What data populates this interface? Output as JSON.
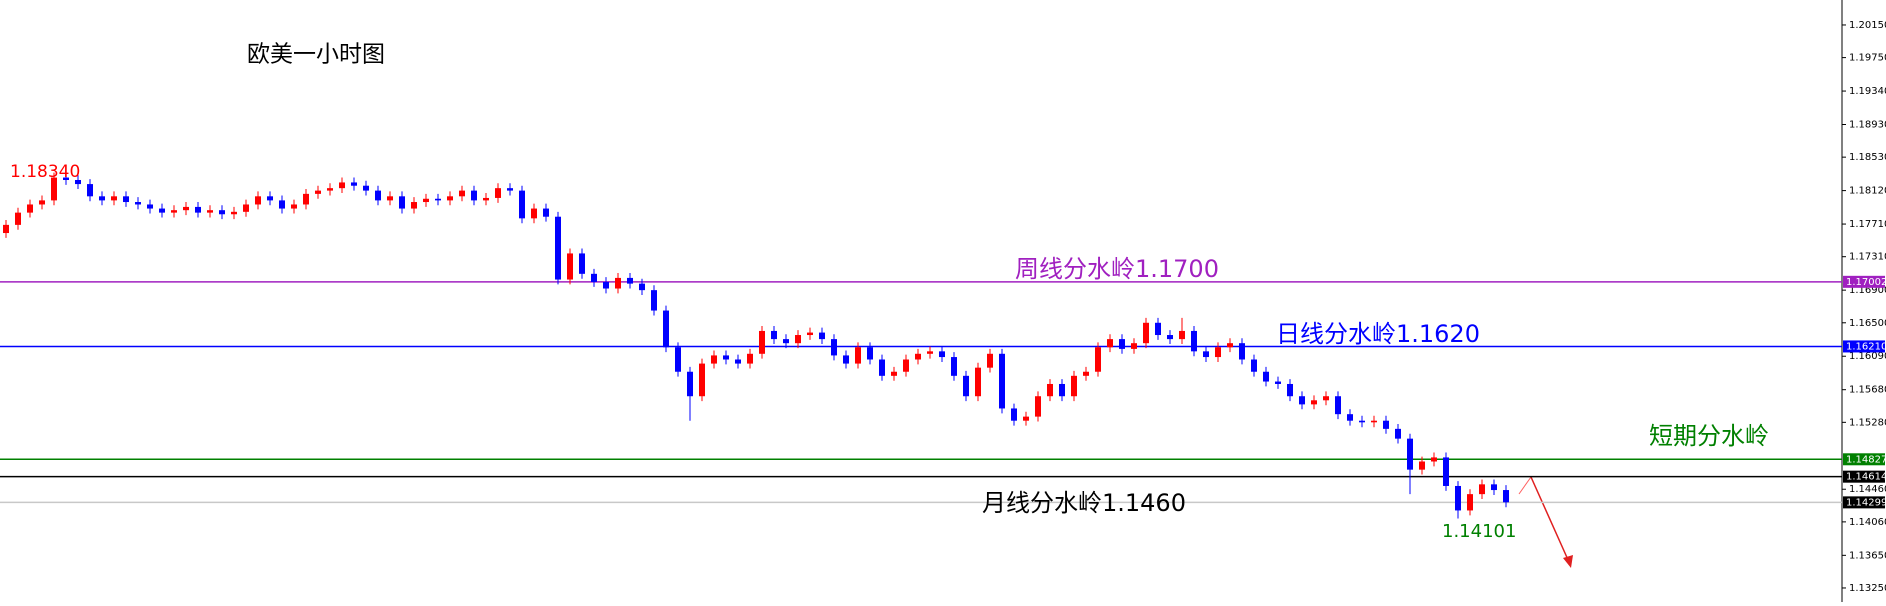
{
  "chart_data": {
    "type": "candlestick",
    "title": "欧美一小时图",
    "ylim": [
      1.13078,
      1.20456
    ],
    "yticks": [
      {
        "value": 1.2015,
        "label": "1.20150"
      },
      {
        "value": 1.1975,
        "label": "1.19750"
      },
      {
        "value": 1.1934,
        "label": "1.19340"
      },
      {
        "value": 1.1893,
        "label": "1.18930"
      },
      {
        "value": 1.1853,
        "label": "1.18530"
      },
      {
        "value": 1.1812,
        "label": "1.18120"
      },
      {
        "value": 1.1771,
        "label": "1.17710"
      },
      {
        "value": 1.1731,
        "label": "1.17310"
      },
      {
        "value": 1.169,
        "label": "1.16900"
      },
      {
        "value": 1.165,
        "label": "1.16500"
      },
      {
        "value": 1.1609,
        "label": "1.16090"
      },
      {
        "value": 1.1568,
        "label": "1.15680"
      },
      {
        "value": 1.1528,
        "label": "1.15280"
      },
      {
        "value": 1.1446,
        "label": "1.14460"
      },
      {
        "value": 1.1406,
        "label": "1.14060"
      },
      {
        "value": 1.1365,
        "label": "1.13650"
      },
      {
        "value": 1.1325,
        "label": "1.13250"
      }
    ],
    "up_color": "#ff0000",
    "down_color": "#0000ff",
    "open": [
      1.176,
      1.177,
      1.1785,
      1.1795,
      1.18,
      1.1828,
      1.1825,
      1.182,
      1.1805,
      1.18,
      1.1805,
      1.1798,
      1.1795,
      1.179,
      1.1785,
      1.1788,
      1.1792,
      1.1785,
      1.1788,
      1.1783,
      1.1786,
      1.1795,
      1.1805,
      1.18,
      1.179,
      1.1795,
      1.1808,
      1.1812,
      1.1815,
      1.1822,
      1.1818,
      1.1812,
      1.18,
      1.1805,
      1.179,
      1.1798,
      1.1802,
      1.18,
      1.1805,
      1.1812,
      1.18,
      1.1803,
      1.1815,
      1.1812,
      1.1778,
      1.179,
      1.178,
      1.1703,
      1.1735,
      1.171,
      1.17,
      1.1692,
      1.1705,
      1.1698,
      1.169,
      1.1665,
      1.162,
      1.159,
      1.156,
      1.16,
      1.161,
      1.1605,
      1.16,
      1.1612,
      1.164,
      1.163,
      1.1625,
      1.1635,
      1.1638,
      1.163,
      1.161,
      1.16,
      1.162,
      1.1605,
      1.1585,
      1.159,
      1.1605,
      1.1612,
      1.1615,
      1.1608,
      1.1585,
      1.156,
      1.1595,
      1.1612,
      1.1545,
      1.153,
      1.1535,
      1.156,
      1.1575,
      1.156,
      1.1585,
      1.159,
      1.162,
      1.163,
      1.1618,
      1.1625,
      1.165,
      1.1635,
      1.163,
      1.164,
      1.1615,
      1.1608,
      1.162,
      1.1625,
      1.1605,
      1.159,
      1.1578,
      1.1575,
      1.156,
      1.155,
      1.1555,
      1.156,
      1.1538,
      1.153,
      1.1528,
      1.153,
      1.152,
      1.1508,
      1.147,
      1.148,
      1.1485,
      1.145,
      1.142,
      1.144,
      1.1452,
      1.1445
    ],
    "high": [
      1.1776,
      1.1791,
      1.1801,
      1.1806,
      1.1834,
      1.1834,
      1.1831,
      1.1826,
      1.1811,
      1.1811,
      1.1811,
      1.1804,
      1.1801,
      1.1796,
      1.1794,
      1.1798,
      1.1798,
      1.1794,
      1.1794,
      1.1792,
      1.1801,
      1.1811,
      1.1811,
      1.1806,
      1.1801,
      1.1814,
      1.1818,
      1.1821,
      1.1828,
      1.1828,
      1.1824,
      1.1818,
      1.1811,
      1.1811,
      1.1804,
      1.1808,
      1.1808,
      1.1811,
      1.1818,
      1.1818,
      1.1809,
      1.1821,
      1.1821,
      1.1818,
      1.1796,
      1.1796,
      1.1786,
      1.1741,
      1.1741,
      1.1716,
      1.1706,
      1.1711,
      1.1711,
      1.1704,
      1.1696,
      1.1671,
      1.1626,
      1.1596,
      1.1606,
      1.1616,
      1.1616,
      1.1611,
      1.1618,
      1.1646,
      1.1646,
      1.1636,
      1.1641,
      1.1644,
      1.1644,
      1.1636,
      1.1616,
      1.1626,
      1.1626,
      1.1611,
      1.1596,
      1.1611,
      1.1618,
      1.1621,
      1.1621,
      1.1614,
      1.1591,
      1.1601,
      1.1618,
      1.1618,
      1.1551,
      1.1541,
      1.1566,
      1.1581,
      1.1581,
      1.1591,
      1.1596,
      1.1626,
      1.1636,
      1.1636,
      1.1631,
      1.1656,
      1.1656,
      1.1641,
      1.1656,
      1.1646,
      1.1621,
      1.1626,
      1.1631,
      1.1631,
      1.1611,
      1.1596,
      1.1584,
      1.1581,
      1.1566,
      1.1561,
      1.1566,
      1.1566,
      1.1544,
      1.1536,
      1.1536,
      1.1536,
      1.1526,
      1.1514,
      1.1486,
      1.1491,
      1.1491,
      1.1456,
      1.1446,
      1.1458,
      1.1458,
      1.1451
    ],
    "low": [
      1.1754,
      1.1764,
      1.1779,
      1.1789,
      1.1794,
      1.1819,
      1.1814,
      1.1799,
      1.1794,
      1.1794,
      1.1792,
      1.1789,
      1.1784,
      1.1779,
      1.1779,
      1.1782,
      1.1779,
      1.1779,
      1.1777,
      1.1777,
      1.178,
      1.1789,
      1.1794,
      1.1784,
      1.1784,
      1.1789,
      1.1802,
      1.1806,
      1.1809,
      1.1812,
      1.1806,
      1.1794,
      1.1794,
      1.1784,
      1.1784,
      1.1792,
      1.1794,
      1.1794,
      1.1799,
      1.1794,
      1.1794,
      1.1797,
      1.1806,
      1.1772,
      1.1772,
      1.1774,
      1.1697,
      1.1697,
      1.1704,
      1.1694,
      1.1686,
      1.1686,
      1.1692,
      1.1684,
      1.1659,
      1.1614,
      1.1584,
      1.153,
      1.1554,
      1.1594,
      1.1599,
      1.1594,
      1.1594,
      1.1606,
      1.1624,
      1.1619,
      1.1619,
      1.1629,
      1.1624,
      1.1604,
      1.1594,
      1.1594,
      1.1599,
      1.1579,
      1.1579,
      1.1584,
      1.1599,
      1.1606,
      1.1602,
      1.1579,
      1.1554,
      1.1554,
      1.1589,
      1.1539,
      1.1524,
      1.1524,
      1.1529,
      1.1554,
      1.1554,
      1.1554,
      1.1579,
      1.1584,
      1.1614,
      1.1612,
      1.1612,
      1.1619,
      1.1629,
      1.1624,
      1.1624,
      1.1609,
      1.1602,
      1.1602,
      1.1614,
      1.1599,
      1.1584,
      1.1572,
      1.1569,
      1.1554,
      1.1544,
      1.1544,
      1.1549,
      1.1532,
      1.1524,
      1.1522,
      1.1522,
      1.1514,
      1.1502,
      1.144,
      1.1464,
      1.1474,
      1.1444,
      1.14101,
      1.1414,
      1.1434,
      1.1439,
      1.1424
    ],
    "close": [
      1.177,
      1.1785,
      1.1795,
      1.18,
      1.1828,
      1.1825,
      1.182,
      1.1805,
      1.18,
      1.1805,
      1.1798,
      1.1795,
      1.179,
      1.1785,
      1.1788,
      1.1792,
      1.1785,
      1.1788,
      1.1783,
      1.1786,
      1.1795,
      1.1805,
      1.18,
      1.179,
      1.1795,
      1.1808,
      1.1812,
      1.1815,
      1.1822,
      1.1818,
      1.1812,
      1.18,
      1.1805,
      1.179,
      1.1798,
      1.1802,
      1.18,
      1.1805,
      1.1812,
      1.18,
      1.1803,
      1.1815,
      1.1812,
      1.1778,
      1.179,
      1.178,
      1.1703,
      1.1735,
      1.171,
      1.17,
      1.1692,
      1.1705,
      1.1698,
      1.169,
      1.1665,
      1.162,
      1.159,
      1.156,
      1.16,
      1.161,
      1.1605,
      1.16,
      1.1612,
      1.164,
      1.163,
      1.1625,
      1.1635,
      1.1638,
      1.163,
      1.161,
      1.16,
      1.162,
      1.1605,
      1.1585,
      1.159,
      1.1605,
      1.1612,
      1.1615,
      1.1608,
      1.1585,
      1.156,
      1.1595,
      1.1612,
      1.1545,
      1.153,
      1.1535,
      1.156,
      1.1575,
      1.156,
      1.1585,
      1.159,
      1.162,
      1.163,
      1.1618,
      1.1625,
      1.165,
      1.1635,
      1.163,
      1.164,
      1.1615,
      1.1608,
      1.162,
      1.1625,
      1.1605,
      1.159,
      1.1578,
      1.1575,
      1.156,
      1.155,
      1.1555,
      1.156,
      1.1538,
      1.153,
      1.1528,
      1.153,
      1.152,
      1.1508,
      1.147,
      1.148,
      1.1485,
      1.145,
      1.142,
      1.144,
      1.1452,
      1.1445,
      1.143
    ],
    "levels": [
      {
        "value": 1.17002,
        "label": "1.17002",
        "color": "#a020c0",
        "tag_color": "#a020c0"
      },
      {
        "value": 1.1621,
        "label": "1.16210",
        "color": "#0000ff",
        "tag_color": "#0000ff"
      },
      {
        "value": 1.14827,
        "label": "1.14827",
        "color": "#008000",
        "tag_color": "#008000"
      },
      {
        "value": 1.14614,
        "label": "1.14614",
        "color": "#000000",
        "tag_color": "#000000"
      },
      {
        "value": 1.14299,
        "label": "1.14299",
        "color": "#c8c8c8",
        "tag_color": "#000000"
      }
    ],
    "annotations": [
      {
        "text": "1.18340",
        "color": "#ff0000"
      },
      {
        "text": "周线分水岭1.1700",
        "color": "#a020c0"
      },
      {
        "text": "日线分水岭1.1620",
        "color": "#0000ff"
      },
      {
        "text": "短期分水岭",
        "color": "#008000"
      },
      {
        "text": "月线分水岭1.1460",
        "color": "#000000"
      },
      {
        "text": "1.14101",
        "color": "#008000"
      }
    ]
  }
}
